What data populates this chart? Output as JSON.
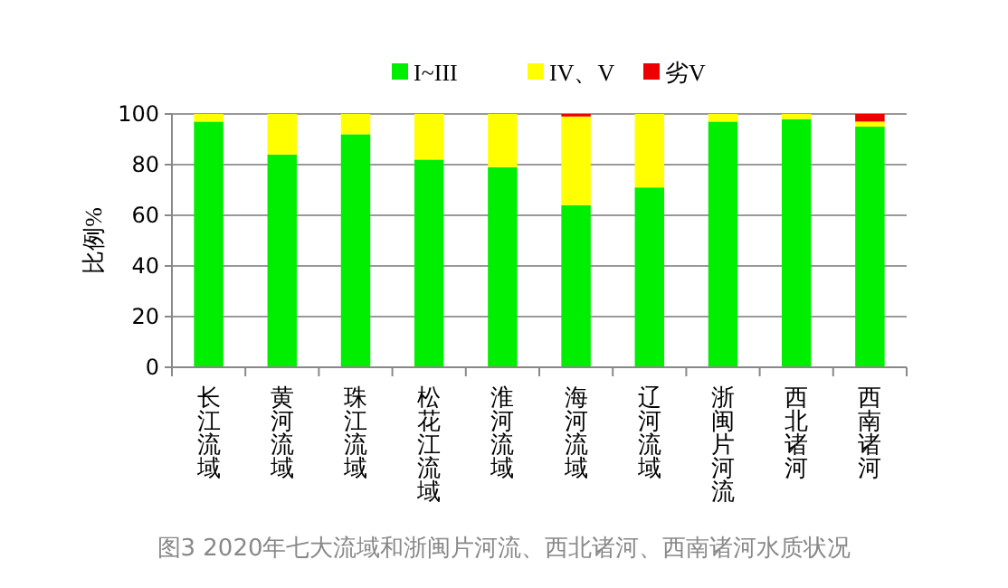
{
  "chart_data": {
    "type": "bar",
    "stacked": true,
    "ylabel": "比例%",
    "categories": [
      "长江流域",
      "黄河流域",
      "珠江流域",
      "松花江流域",
      "淮河流域",
      "海河流域",
      "辽河流域",
      "浙闽片河流",
      "西北诸河",
      "西南诸河"
    ],
    "series": [
      {
        "name": "I~III",
        "color": "#00ee00",
        "values": [
          97,
          84,
          92,
          82,
          79,
          64,
          71,
          97,
          98,
          95
        ]
      },
      {
        "name": "IV、V",
        "color": "#ffff00",
        "values": [
          3,
          16,
          8,
          18,
          21,
          35,
          29,
          3,
          2,
          2
        ]
      },
      {
        "name": "劣V",
        "color": "#ee0000",
        "values": [
          0,
          0,
          0,
          0,
          0,
          1,
          0,
          0,
          0,
          3
        ]
      }
    ],
    "ylim": [
      0,
      100
    ],
    "yticks": [
      0,
      20,
      40,
      60,
      80,
      100
    ],
    "grid": "y",
    "legend": "top",
    "annotations": [
      "图3  2020年七大流域和浙闽片河流、西北诸河、西南诸河水质状况"
    ]
  }
}
